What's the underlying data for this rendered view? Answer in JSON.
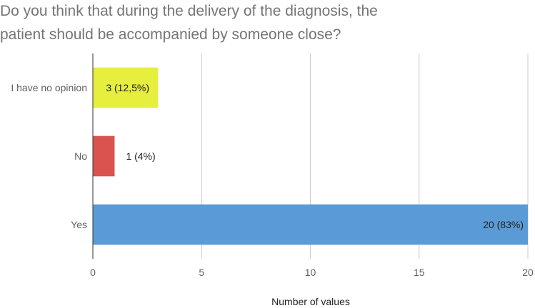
{
  "chart_data": {
    "type": "bar",
    "orientation": "horizontal",
    "title_lines": [
      "Do you think that during the delivery of the diagnosis, the",
      "patient should be accompanied by someone close?"
    ],
    "categories": [
      "I have no opinion",
      "No",
      "Yes"
    ],
    "values": [
      3,
      1,
      20
    ],
    "data_labels": [
      "3 (12,5%)",
      "1 (4%)",
      "20 (83%)"
    ],
    "colors": [
      "#e6ee3e",
      "#d9534f",
      "#5b9bd5"
    ],
    "xlabel": "Number of values",
    "ylabel": "",
    "xlim": [
      0,
      20
    ],
    "xticks": [
      0,
      5,
      10,
      15,
      20
    ],
    "grid": true,
    "legend": "none"
  }
}
